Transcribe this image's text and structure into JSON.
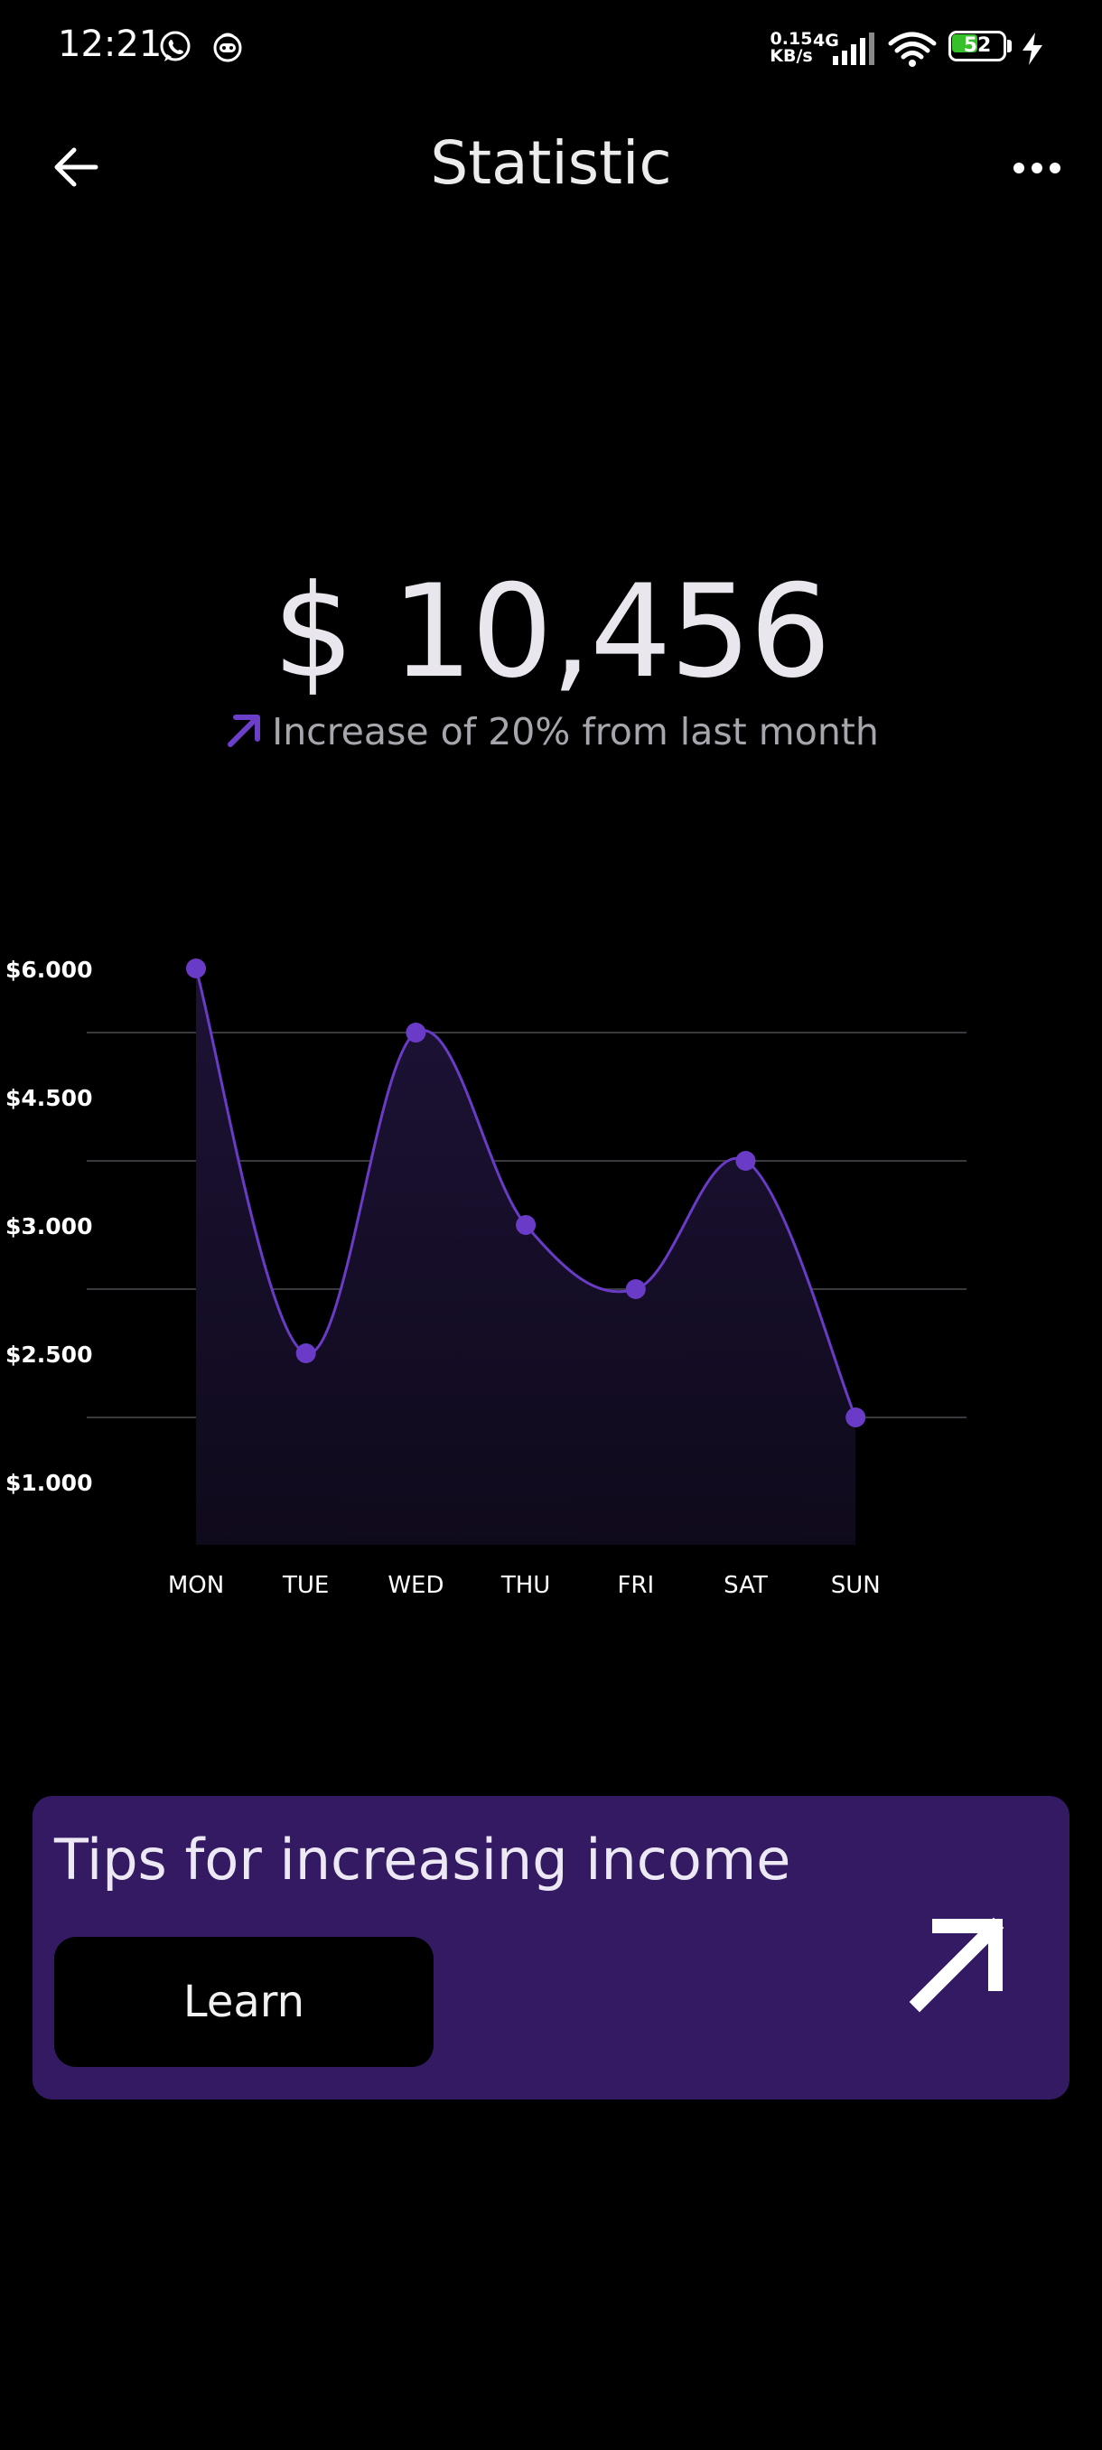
{
  "status_bar": {
    "time": "12:21",
    "net_speed": "0.15 KB/s",
    "network": "4G",
    "battery_level": "52",
    "battery_color": "#36c12b",
    "app_icons": [
      "whatsapp-icon",
      "bot-icon"
    ]
  },
  "header": {
    "title": "Statistic",
    "back_icon": "arrow-left-icon",
    "menu_icon": "more-horizontal-icon"
  },
  "balance": {
    "amount": "$ 10,456",
    "change_text": "Increase of 20% from last month",
    "change_icon": "arrow-up-right-icon",
    "accent_color": "#6b3fc9"
  },
  "chart_data": {
    "type": "area",
    "categories": [
      "MON",
      "TUE",
      "WED",
      "THU",
      "FRI",
      "SAT",
      "SUN"
    ],
    "ytick_labels": [
      "$6.000",
      "$4.500",
      "$3.000",
      "$2.500",
      "$1.000"
    ],
    "series": [
      {
        "level_index": [
          0,
          3,
          0.5,
          2,
          2.5,
          1.5,
          3.5
        ]
      }
    ],
    "grid": true,
    "line_color": "#6a3bc6",
    "fill_color": "#1a1130"
  },
  "tips_card": {
    "title": "Tips for increasing income",
    "button_label": "Learn",
    "arrow_icon": "arrow-up-right-icon",
    "background": "#331a63"
  }
}
